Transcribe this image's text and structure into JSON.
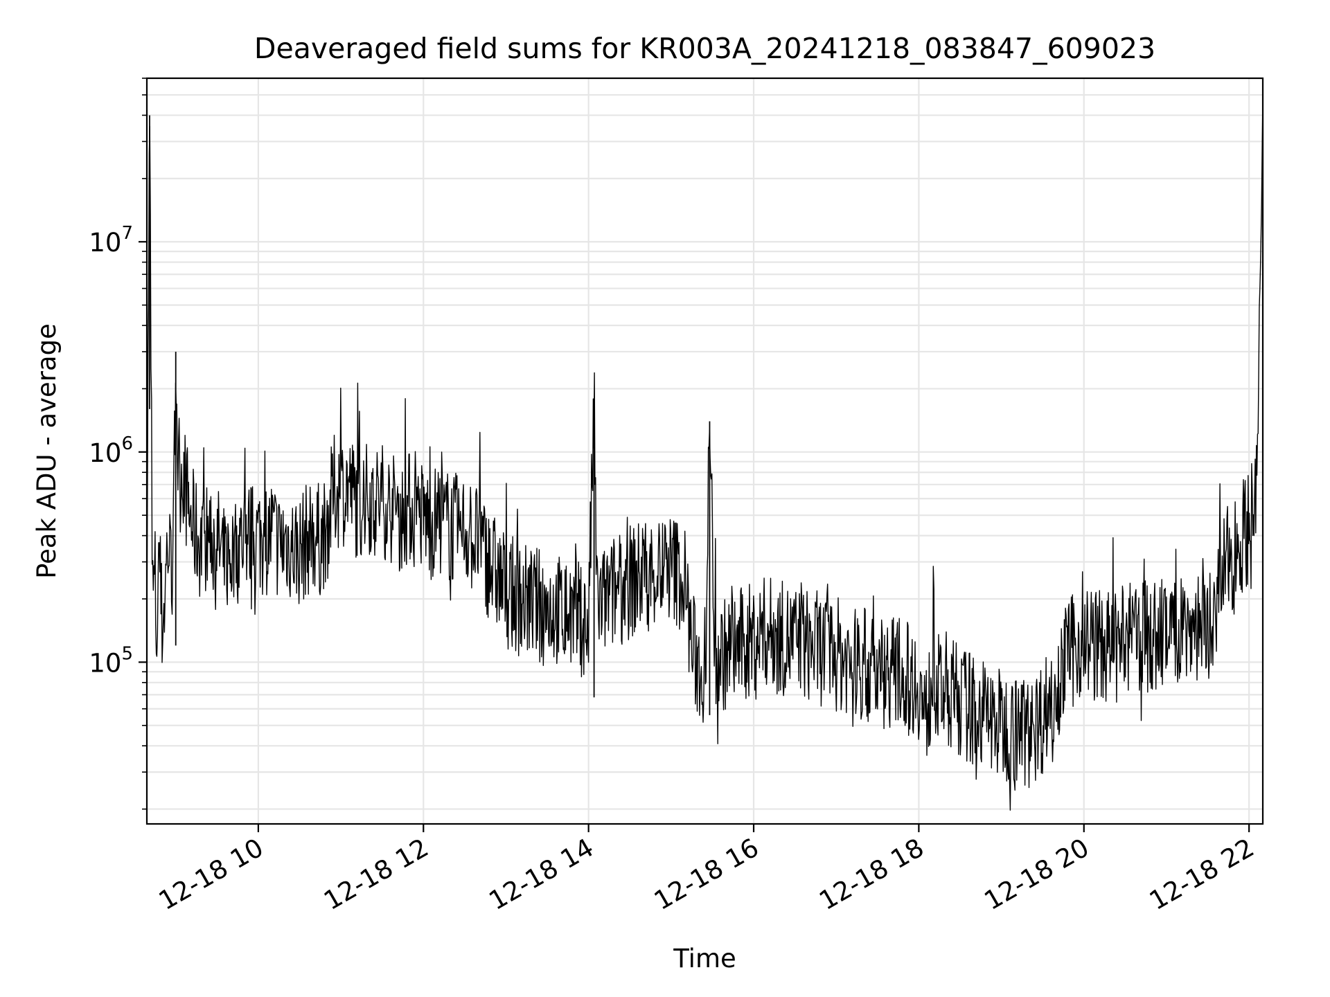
{
  "chart_data": {
    "type": "line",
    "title": "Deaveraged field sums for KR003A_20241218_083847_609023",
    "xlabel": "Time",
    "ylabel": "Peak ADU - average",
    "x_tick_labels": [
      "12-18 10",
      "12-18 12",
      "12-18 14",
      "12-18 16",
      "12-18 18",
      "12-18 20",
      "12-18 22"
    ],
    "x_ticks": [
      "2024-12-18 10:00",
      "2024-12-18 12:00",
      "2024-12-18 14:00",
      "2024-12-18 16:00",
      "2024-12-18 18:00",
      "2024-12-18 20:00",
      "2024-12-18 22:00"
    ],
    "xlim": [
      "2024-12-18 08:39",
      "2024-12-18 22:10"
    ],
    "y_tick_labels": [
      {
        "base": "10",
        "exp": "5"
      },
      {
        "base": "10",
        "exp": "6"
      },
      {
        "base": "10",
        "exp": "7"
      }
    ],
    "y_ticks": [
      100000,
      1000000,
      10000000
    ],
    "ylim": [
      17000,
      60000000
    ],
    "yscale": "log",
    "grid": true,
    "line_color": "#000000",
    "series": [
      {
        "x": [
          "08:39",
          "08:41",
          "08:43",
          "08:45",
          "08:46",
          "08:48",
          "08:50",
          "08:52",
          "08:54",
          "08:56",
          "08:58",
          "09:00",
          "09:02",
          "09:05",
          "09:10",
          "09:15",
          "09:20",
          "09:25",
          "09:30",
          "09:35",
          "09:40",
          "09:45",
          "09:50",
          "09:55",
          "10:00",
          "10:05",
          "10:10",
          "10:15",
          "10:20",
          "10:25",
          "10:30",
          "10:35",
          "10:40",
          "10:45",
          "10:50",
          "10:55",
          "11:00",
          "11:05",
          "11:10",
          "11:15",
          "11:20",
          "11:25",
          "11:30",
          "11:35",
          "11:40",
          "11:45",
          "11:50",
          "11:55",
          "12:00",
          "12:05",
          "12:10",
          "12:15",
          "12:20",
          "12:25",
          "12:30",
          "12:35",
          "12:40",
          "12:45",
          "12:50",
          "12:55",
          "13:00",
          "13:10",
          "13:20",
          "13:30",
          "13:40",
          "13:50",
          "13:55",
          "14:00",
          "14:04",
          "14:06",
          "14:10",
          "14:20",
          "14:30",
          "14:40",
          "14:50",
          "15:00",
          "15:05",
          "15:10",
          "15:15",
          "15:20",
          "15:25",
          "15:28",
          "15:32",
          "15:40",
          "15:50",
          "16:00",
          "16:10",
          "16:20",
          "16:30",
          "16:40",
          "16:50",
          "17:00",
          "17:10",
          "17:20",
          "17:30",
          "17:40",
          "17:50",
          "18:00",
          "18:05",
          "18:10",
          "18:15",
          "18:20",
          "18:30",
          "18:40",
          "18:50",
          "19:00",
          "19:10",
          "19:20",
          "19:30",
          "19:40",
          "19:50",
          "20:00",
          "20:10",
          "20:20",
          "20:30",
          "20:40",
          "20:50",
          "21:00",
          "21:10",
          "21:20",
          "21:30",
          "21:35",
          "21:40",
          "21:45",
          "21:50",
          "21:55",
          "22:00",
          "22:05",
          "22:10"
        ],
        "y": [
          250000,
          40000000,
          200000,
          250000,
          120000,
          350000,
          150000,
          200000,
          380000,
          300000,
          250000,
          3000000,
          700000,
          850000,
          500000,
          400000,
          350000,
          420000,
          380000,
          300000,
          320000,
          350000,
          420000,
          380000,
          400000,
          380000,
          420000,
          360000,
          380000,
          350000,
          340000,
          380000,
          400000,
          380000,
          450000,
          650000,
          650000,
          700000,
          600000,
          550000,
          620000,
          580000,
          600000,
          550000,
          520000,
          500000,
          550000,
          480000,
          500000,
          450000,
          480000,
          460000,
          440000,
          420000,
          430000,
          400000,
          380000,
          320000,
          280000,
          250000,
          220000,
          200000,
          190000,
          185000,
          175000,
          170000,
          160000,
          150000,
          1700000,
          200000,
          190000,
          220000,
          240000,
          260000,
          270000,
          280000,
          270000,
          240000,
          120000,
          95000,
          100000,
          1400000,
          105000,
          110000,
          120000,
          130000,
          140000,
          130000,
          125000,
          120000,
          115000,
          110000,
          100000,
          95000,
          90000,
          92000,
          85000,
          80000,
          50000,
          90000,
          70000,
          75000,
          65000,
          60000,
          55000,
          50000,
          48000,
          47000,
          55000,
          80000,
          110000,
          130000,
          120000,
          115000,
          125000,
          135000,
          130000,
          140000,
          145000,
          150000,
          155000,
          150000,
          250000,
          300000,
          350000,
          400000,
          450000,
          500000,
          30000000
        ]
      }
    ]
  }
}
